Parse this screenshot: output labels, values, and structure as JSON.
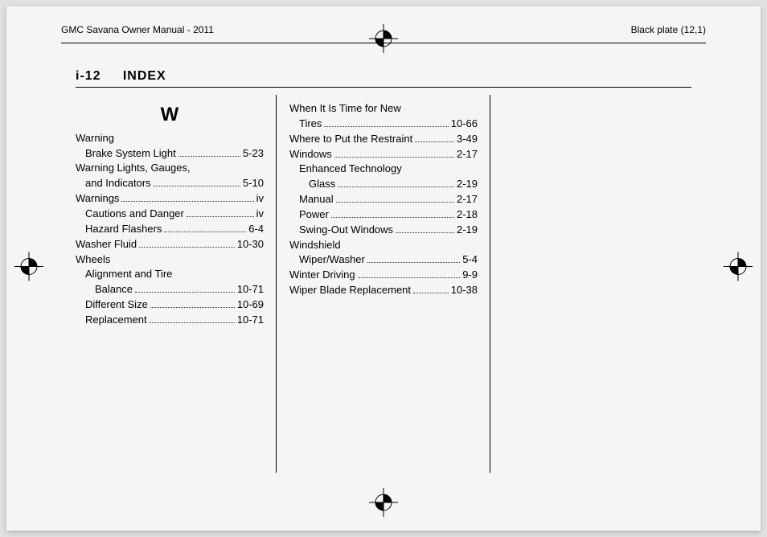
{
  "header": {
    "left": "GMC Savana Owner Manual - 2011",
    "right": "Black plate (12,1)"
  },
  "pageHeading": {
    "pageNum": "i-12",
    "title": "INDEX"
  },
  "sectionLetter": "W",
  "col1": [
    {
      "label": "Warning",
      "page": "",
      "indent": 0,
      "nopg": true
    },
    {
      "label": "Brake System Light",
      "page": "5-23",
      "indent": 1
    },
    {
      "label": "Warning Lights, Gauges,",
      "page": "",
      "indent": 0,
      "nopg": true
    },
    {
      "label": "and Indicators",
      "page": "5-10",
      "indent": 1
    },
    {
      "label": "Warnings",
      "page": "iv",
      "indent": 0
    },
    {
      "label": "Cautions and Danger",
      "page": "iv",
      "indent": 1
    },
    {
      "label": "Hazard Flashers",
      "page": "6-4",
      "indent": 1
    },
    {
      "label": "Washer Fluid",
      "page": "10-30",
      "indent": 0
    },
    {
      "label": "Wheels",
      "page": "",
      "indent": 0,
      "nopg": true
    },
    {
      "label": "Alignment and Tire",
      "page": "",
      "indent": 1,
      "nopg": true
    },
    {
      "label": "Balance",
      "page": "10-71",
      "indent": 2
    },
    {
      "label": "Different Size",
      "page": "10-69",
      "indent": 1
    },
    {
      "label": "Replacement",
      "page": "10-71",
      "indent": 1
    }
  ],
  "col2": [
    {
      "label": "When It Is Time for New",
      "page": "",
      "indent": 0,
      "nopg": true
    },
    {
      "label": "Tires",
      "page": "10-66",
      "indent": 1
    },
    {
      "label": "Where to Put the Restraint",
      "page": "3-49",
      "indent": 0
    },
    {
      "label": "Windows",
      "page": "2-17",
      "indent": 0
    },
    {
      "label": "Enhanced Technology",
      "page": "",
      "indent": 1,
      "nopg": true
    },
    {
      "label": "Glass",
      "page": "2-19",
      "indent": 2
    },
    {
      "label": "Manual",
      "page": "2-17",
      "indent": 1
    },
    {
      "label": "Power",
      "page": "2-18",
      "indent": 1
    },
    {
      "label": "Swing-Out Windows",
      "page": "2-19",
      "indent": 1
    },
    {
      "label": "Windshield",
      "page": "",
      "indent": 0,
      "nopg": true
    },
    {
      "label": "Wiper/Washer",
      "page": "5-4",
      "indent": 1
    },
    {
      "label": "Winter Driving",
      "page": "9-9",
      "indent": 0
    },
    {
      "label": "Wiper Blade Replacement",
      "page": "10-38",
      "indent": 0
    }
  ]
}
